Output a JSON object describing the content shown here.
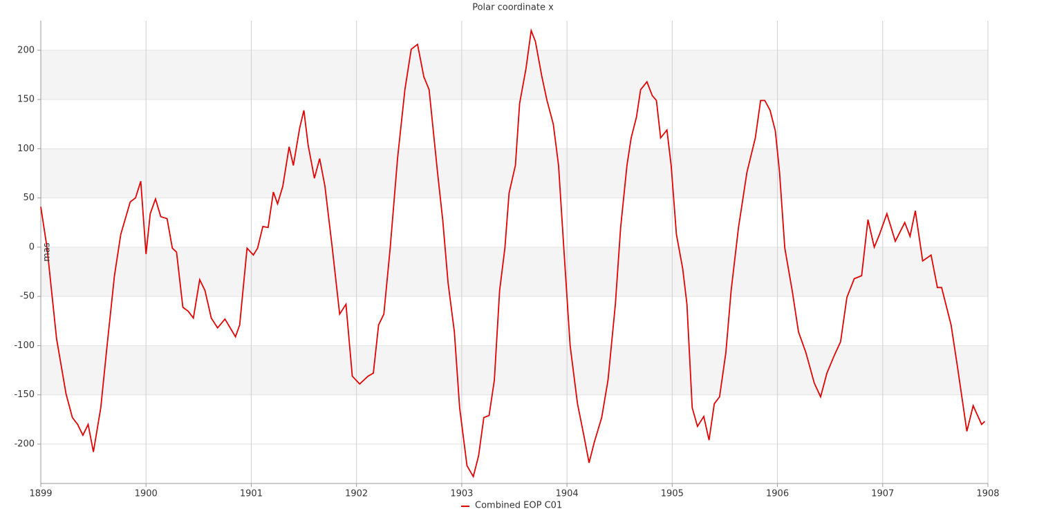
{
  "chart_data": {
    "type": "line",
    "title": "Polar coordinate x",
    "ylabel": "mas",
    "x": [
      1899.0,
      1899.06,
      1899.15,
      1899.24,
      1899.3,
      1899.35,
      1899.4,
      1899.45,
      1899.5,
      1899.57,
      1899.63,
      1899.7,
      1899.76,
      1899.85,
      1899.9,
      1899.95,
      1900.0,
      1900.04,
      1900.09,
      1900.14,
      1900.2,
      1900.25,
      1900.29,
      1900.35,
      1900.4,
      1900.45,
      1900.51,
      1900.56,
      1900.62,
      1900.68,
      1900.75,
      1900.85,
      1900.89,
      1900.96,
      1901.02,
      1901.06,
      1901.11,
      1901.16,
      1901.21,
      1901.25,
      1901.3,
      1901.36,
      1901.4,
      1901.46,
      1901.5,
      1901.54,
      1901.6,
      1901.65,
      1901.7,
      1901.77,
      1901.84,
      1901.9,
      1901.96,
      1902.03,
      1902.11,
      1902.16,
      1902.21,
      1902.26,
      1902.32,
      1902.39,
      1902.46,
      1902.52,
      1902.58,
      1902.64,
      1902.69,
      1902.77,
      1902.82,
      1902.87,
      1902.93,
      1902.98,
      1903.05,
      1903.11,
      1903.16,
      1903.21,
      1903.26,
      1903.31,
      1903.36,
      1903.41,
      1903.45,
      1903.51,
      1903.55,
      1903.61,
      1903.66,
      1903.7,
      1903.76,
      1903.81,
      1903.87,
      1903.92,
      1903.97,
      1904.03,
      1904.1,
      1904.16,
      1904.21,
      1904.26,
      1904.33,
      1904.39,
      1904.46,
      1904.51,
      1904.57,
      1904.61,
      1904.66,
      1904.7,
      1904.76,
      1904.81,
      1904.85,
      1904.89,
      1904.95,
      1904.99,
      1905.04,
      1905.1,
      1905.14,
      1905.19,
      1905.24,
      1905.3,
      1905.35,
      1905.4,
      1905.45,
      1905.51,
      1905.56,
      1905.63,
      1905.71,
      1905.79,
      1905.84,
      1905.88,
      1905.93,
      1905.98,
      1906.02,
      1906.07,
      1906.14,
      1906.2,
      1906.27,
      1906.35,
      1906.41,
      1906.47,
      1906.54,
      1906.6,
      1906.66,
      1906.73,
      1906.8,
      1906.86,
      1906.92,
      1906.97,
      1907.04,
      1907.12,
      1907.21,
      1907.26,
      1907.31,
      1907.38,
      1907.46,
      1907.52,
      1907.56,
      1907.65,
      1907.71,
      1907.8,
      1907.86,
      1907.94,
      1907.97
    ],
    "series": [
      {
        "name": "Combined EOP C01",
        "color": "#e00000",
        "values": [
          41,
          -1,
          -93,
          -149,
          -173,
          -180,
          -191,
          -180,
          -208,
          -163,
          -100,
          -29,
          13,
          46,
          50,
          67,
          -7,
          34,
          49,
          31,
          29,
          -1,
          -5,
          -61,
          -65,
          -72,
          -33,
          -44,
          -72,
          -82,
          -73,
          -91,
          -79,
          -1,
          -8,
          -1,
          21,
          20,
          56,
          44,
          62,
          102,
          83,
          121,
          139,
          104,
          70,
          90,
          62,
          -1,
          -68,
          -58,
          -131,
          -139,
          -131,
          -128,
          -79,
          -68,
          -1,
          90,
          160,
          201,
          206,
          173,
          160,
          76,
          27,
          -36,
          -86,
          -163,
          -222,
          -233,
          -212,
          -173,
          -171,
          -135,
          -44,
          -1,
          55,
          83,
          146,
          181,
          220,
          209,
          174,
          149,
          125,
          83,
          -1,
          -100,
          -159,
          -191,
          -219,
          -198,
          -173,
          -135,
          -58,
          20,
          83,
          111,
          132,
          160,
          168,
          154,
          149,
          111,
          119,
          83,
          13,
          -22,
          -58,
          -163,
          -182,
          -172,
          -196,
          -159,
          -152,
          -107,
          -44,
          20,
          76,
          111,
          149,
          149,
          139,
          118,
          76,
          -1,
          -44,
          -86,
          -107,
          -138,
          -152,
          -128,
          -110,
          -96,
          -51,
          -32,
          -29,
          28,
          0,
          13,
          34,
          6,
          25,
          11,
          37,
          -14,
          -8,
          -41,
          -41,
          -79,
          -121,
          -187,
          -161,
          -180,
          -177
        ]
      }
    ],
    "xlim": [
      1899,
      1908
    ],
    "xticks": [
      1899,
      1900,
      1901,
      1902,
      1903,
      1904,
      1905,
      1906,
      1907,
      1908
    ],
    "ylim": [
      -240,
      230
    ],
    "yticks": [
      -200,
      -150,
      -100,
      -50,
      0,
      50,
      100,
      150,
      200
    ],
    "grid": true,
    "legend": "bottom"
  }
}
